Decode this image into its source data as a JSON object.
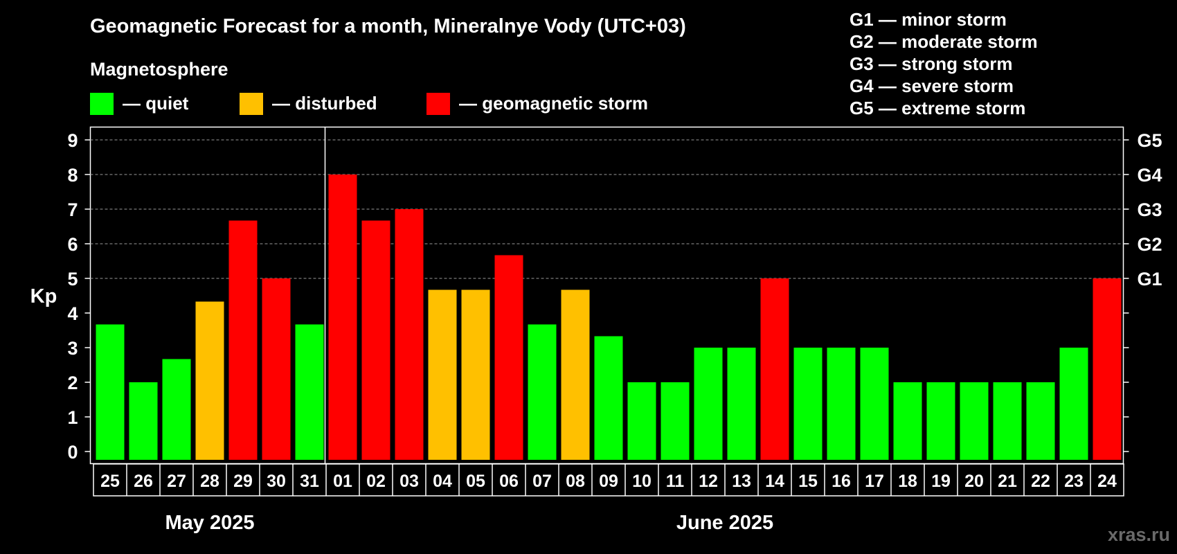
{
  "title": "Geomagnetic Forecast for a month, Mineralnye Vody (UTC+03)",
  "subtitle": "Magnetosphere",
  "legend": [
    {
      "label": "— quiet",
      "color": "#00ff00"
    },
    {
      "label": "— disturbed",
      "color": "#ffc000"
    },
    {
      "label": "— geomagnetic storm",
      "color": "#ff0000"
    }
  ],
  "g_scale": [
    "G1 — minor storm",
    "G2 — moderate storm",
    "G3 — strong storm",
    "G4 — severe storm",
    "G5 — extreme storm"
  ],
  "watermark": "xras.ru",
  "colors": {
    "quiet": "#00ff00",
    "disturbed": "#ffc000",
    "storm": "#ff0000",
    "background": "#000000",
    "axis": "#ffffff",
    "grid": "#9a9a9a"
  },
  "chart_data": {
    "type": "bar",
    "ylabel": "Kp",
    "ylim": [
      0,
      9
    ],
    "yticks": [
      "0",
      "1",
      "2",
      "3",
      "4",
      "5",
      "6",
      "7",
      "8",
      "9"
    ],
    "right_ticks": [
      {
        "value": 5,
        "label": "G1"
      },
      {
        "value": 6,
        "label": "G2"
      },
      {
        "value": 7,
        "label": "G3"
      },
      {
        "value": 8,
        "label": "G4"
      },
      {
        "value": 9,
        "label": "G5"
      }
    ],
    "grid": "dashed horizontal lines at Kp 5–9",
    "categories": [
      "25",
      "26",
      "27",
      "28",
      "29",
      "30",
      "31",
      "01",
      "02",
      "03",
      "04",
      "05",
      "06",
      "07",
      "08",
      "09",
      "10",
      "11",
      "12",
      "13",
      "14",
      "15",
      "16",
      "17",
      "18",
      "19",
      "20",
      "21",
      "22",
      "23",
      "24"
    ],
    "values": [
      3.67,
      2,
      2.67,
      4.33,
      6.67,
      5,
      3.67,
      8,
      6.67,
      7,
      4.67,
      4.67,
      5.67,
      3.67,
      4.67,
      3.33,
      2,
      2,
      3,
      3,
      5,
      3,
      3,
      3,
      2,
      2,
      2,
      2,
      2,
      3,
      5
    ],
    "status": [
      "quiet",
      "quiet",
      "quiet",
      "disturbed",
      "storm",
      "storm",
      "quiet",
      "storm",
      "storm",
      "storm",
      "disturbed",
      "disturbed",
      "storm",
      "quiet",
      "disturbed",
      "quiet",
      "quiet",
      "quiet",
      "quiet",
      "quiet",
      "storm",
      "quiet",
      "quiet",
      "quiet",
      "quiet",
      "quiet",
      "quiet",
      "quiet",
      "quiet",
      "quiet",
      "storm"
    ],
    "months": [
      {
        "label": "May 2025",
        "count": 7
      },
      {
        "label": "June 2025",
        "count": 24
      }
    ]
  }
}
